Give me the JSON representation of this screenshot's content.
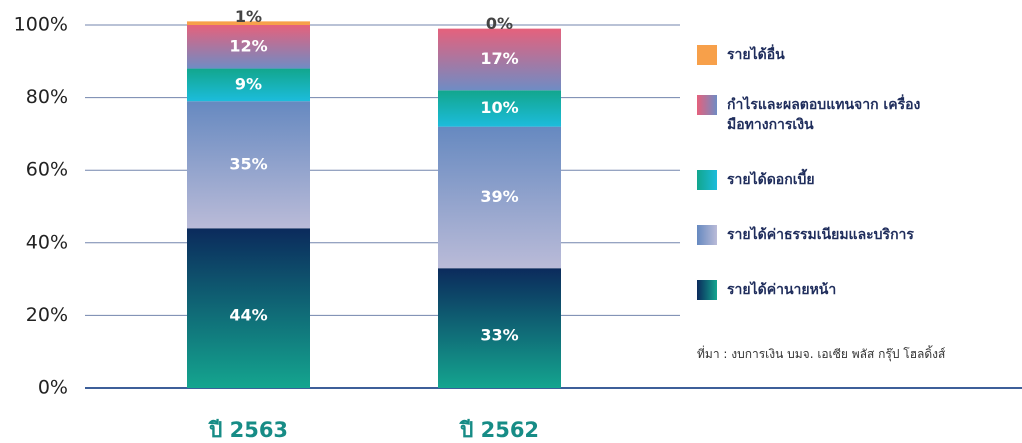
{
  "chart_data": {
    "type": "stacked-bar",
    "categories": [
      "ปี 2563",
      "ปี 2562"
    ],
    "series": [
      {
        "name": "รายได้ค่านายหน้า",
        "gradient": [
          "#0b2a5c",
          "#14a58f"
        ],
        "values": [
          44,
          33
        ],
        "value_labels": [
          "44%",
          "33%"
        ]
      },
      {
        "name": "รายได้ค่าธรรมเนียมและบริการ",
        "gradient": [
          "#6689c0",
          "#babbd8"
        ],
        "values": [
          35,
          39
        ],
        "value_labels": [
          "35%",
          "39%"
        ]
      },
      {
        "name": "รายได้ดอกเบี้ย",
        "gradient": [
          "#12a68d",
          "#1cbcdc"
        ],
        "values": [
          9,
          10
        ],
        "value_labels": [
          "9%",
          "10%"
        ]
      },
      {
        "name": "กำไรและผลตอบแทนจาก เครื่องมือทางการเงิน",
        "gradient": [
          "#e5617c",
          "#6f8cc4"
        ],
        "values": [
          12,
          17
        ],
        "value_labels": [
          "12%",
          "17%"
        ]
      },
      {
        "name": "รายได้อื่น",
        "gradient": [
          "#f7a04a",
          "#f7a04a"
        ],
        "values": [
          1,
          0
        ],
        "value_labels": [
          "1%",
          "0%"
        ]
      }
    ],
    "ylim": [
      0,
      100
    ],
    "yticks": [
      {
        "value": 0,
        "label": "0%"
      },
      {
        "value": 20,
        "label": "20%"
      },
      {
        "value": 40,
        "label": "40%"
      },
      {
        "value": 60,
        "label": "60%"
      },
      {
        "value": 80,
        "label": "80%"
      },
      {
        "value": 100,
        "label": "100%"
      }
    ],
    "grid": true,
    "legend": "right",
    "note": "ที่มา : งบการเงิน บมจ. เอเซีย พลัส กรุ๊ป โฮลดิ้งส์"
  }
}
